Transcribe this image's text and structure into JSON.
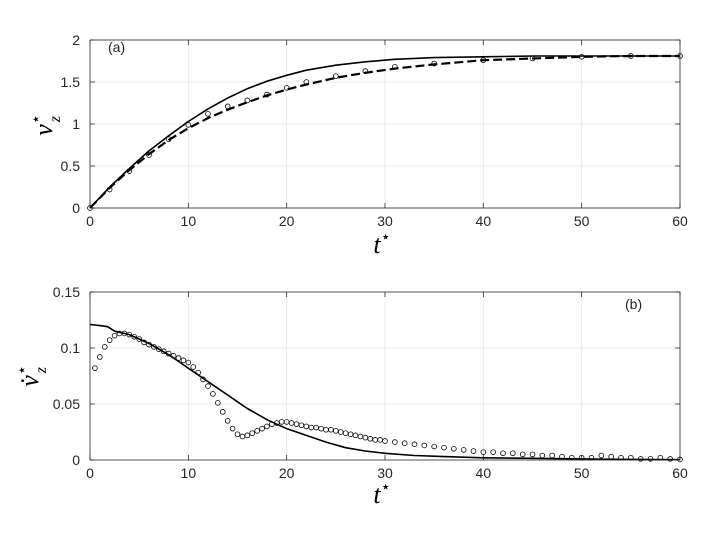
{
  "chart_data": [
    {
      "type": "line",
      "panel_label": "(a)",
      "xlabel": "t",
      "xlabel_sup": "⋆",
      "ylabel": "v",
      "ylabel_sup": "⋆",
      "ylabel_sub": "z",
      "xlim": [
        0,
        60
      ],
      "ylim": [
        0,
        2
      ],
      "xticks": [
        0,
        10,
        20,
        30,
        40,
        50,
        60
      ],
      "yticks": [
        0,
        0.5,
        1,
        1.5,
        2
      ],
      "xtick_labels": [
        "0",
        "10",
        "20",
        "30",
        "40",
        "50",
        "60"
      ],
      "ytick_labels": [
        "0",
        "0.5",
        "1",
        "1.5",
        "2"
      ],
      "grid": true,
      "series": [
        {
          "style": "solid",
          "x": [
            0,
            2,
            4,
            6,
            8,
            10,
            12,
            14,
            16,
            18,
            20,
            22,
            25,
            28,
            31,
            35,
            40,
            45,
            50,
            55,
            60
          ],
          "y": [
            0,
            0.25,
            0.47,
            0.68,
            0.86,
            1.03,
            1.18,
            1.31,
            1.42,
            1.51,
            1.58,
            1.64,
            1.7,
            1.74,
            1.77,
            1.79,
            1.8,
            1.81,
            1.81,
            1.81,
            1.81
          ]
        },
        {
          "style": "dashed",
          "x": [
            0,
            2,
            4,
            6,
            8,
            10,
            12,
            14,
            16,
            18,
            20,
            22,
            25,
            28,
            31,
            35,
            40,
            45,
            50,
            55,
            60
          ],
          "y": [
            0,
            0.24,
            0.45,
            0.64,
            0.81,
            0.95,
            1.07,
            1.17,
            1.26,
            1.34,
            1.41,
            1.47,
            1.55,
            1.61,
            1.66,
            1.71,
            1.76,
            1.78,
            1.8,
            1.81,
            1.81
          ]
        },
        {
          "style": "markers",
          "x": [
            0,
            2,
            4,
            6,
            8,
            10,
            12,
            14,
            16,
            18,
            20,
            22,
            25,
            28,
            31,
            35,
            40,
            45,
            50,
            55,
            60
          ],
          "y": [
            0,
            0.22,
            0.44,
            0.63,
            0.82,
            0.99,
            1.12,
            1.21,
            1.28,
            1.35,
            1.43,
            1.5,
            1.57,
            1.63,
            1.68,
            1.72,
            1.76,
            1.78,
            1.8,
            1.81,
            1.81
          ]
        }
      ]
    },
    {
      "type": "line",
      "panel_label": "(b)",
      "xlabel": "t",
      "xlabel_sup": "⋆",
      "ylabel": "v̇",
      "ylabel_sup": "⋆",
      "ylabel_sub": "z",
      "xlim": [
        0,
        60
      ],
      "ylim": [
        0,
        0.15
      ],
      "xticks": [
        0,
        10,
        20,
        30,
        40,
        50,
        60
      ],
      "yticks": [
        0,
        0.05,
        0.1,
        0.15
      ],
      "xtick_labels": [
        "0",
        "10",
        "20",
        "30",
        "40",
        "50",
        "60"
      ],
      "ytick_labels": [
        "0",
        "0.05",
        "0.1",
        "0.15"
      ],
      "grid": true,
      "series": [
        {
          "style": "solid",
          "x": [
            0,
            1,
            1.8,
            2.5,
            3,
            4,
            5,
            6,
            7,
            8,
            9,
            10,
            11,
            12,
            13,
            14,
            15,
            16,
            17,
            18,
            19,
            20,
            22,
            24,
            26,
            28,
            30,
            33,
            36,
            40,
            45,
            50,
            55,
            60
          ],
          "y": [
            0.121,
            0.12,
            0.119,
            0.115,
            0.114,
            0.112,
            0.108,
            0.104,
            0.099,
            0.094,
            0.088,
            0.082,
            0.076,
            0.07,
            0.064,
            0.058,
            0.052,
            0.046,
            0.041,
            0.036,
            0.032,
            0.028,
            0.022,
            0.016,
            0.011,
            0.008,
            0.006,
            0.004,
            0.003,
            0.002,
            0.0015,
            0.001,
            0.0005,
            0.0003
          ]
        },
        {
          "style": "markers",
          "x": [
            0.5,
            1,
            1.5,
            2,
            2.5,
            3,
            3.5,
            4,
            4.5,
            5,
            5.5,
            6,
            6.5,
            7,
            7.5,
            8,
            8.5,
            9,
            9.5,
            10,
            10.5,
            11,
            11.5,
            12,
            12.5,
            13,
            13.5,
            14,
            14.5,
            15,
            15.5,
            16,
            16.5,
            17,
            17.5,
            18,
            18.5,
            19,
            19.5,
            20,
            20.5,
            21,
            21.5,
            22,
            22.5,
            23,
            23.5,
            24,
            24.5,
            25,
            25.5,
            26,
            26.5,
            27,
            27.5,
            28,
            28.5,
            29,
            29.5,
            30,
            31,
            32,
            33,
            34,
            35,
            36,
            37,
            38,
            39,
            40,
            41,
            42,
            43,
            44,
            45,
            46,
            47,
            48,
            49,
            50,
            51,
            52,
            53,
            54,
            55,
            56,
            57,
            58,
            59,
            60
          ],
          "y": [
            0.082,
            0.092,
            0.101,
            0.107,
            0.111,
            0.113,
            0.113,
            0.112,
            0.11,
            0.108,
            0.105,
            0.103,
            0.101,
            0.099,
            0.097,
            0.095,
            0.093,
            0.091,
            0.089,
            0.087,
            0.083,
            0.078,
            0.072,
            0.066,
            0.059,
            0.051,
            0.043,
            0.035,
            0.028,
            0.023,
            0.021,
            0.022,
            0.024,
            0.026,
            0.028,
            0.03,
            0.032,
            0.033,
            0.034,
            0.034,
            0.033,
            0.032,
            0.031,
            0.03,
            0.029,
            0.029,
            0.028,
            0.027,
            0.027,
            0.026,
            0.025,
            0.024,
            0.023,
            0.022,
            0.021,
            0.02,
            0.019,
            0.018,
            0.018,
            0.017,
            0.016,
            0.015,
            0.014,
            0.013,
            0.012,
            0.011,
            0.01,
            0.009,
            0.008,
            0.007,
            0.007,
            0.006,
            0.006,
            0.005,
            0.005,
            0.004,
            0.004,
            0.003,
            0.002,
            0.002,
            0.002,
            0.004,
            0.003,
            0.002,
            0.002,
            0.001,
            0.001,
            0.002,
            0.001,
            0.0005
          ]
        }
      ]
    }
  ]
}
